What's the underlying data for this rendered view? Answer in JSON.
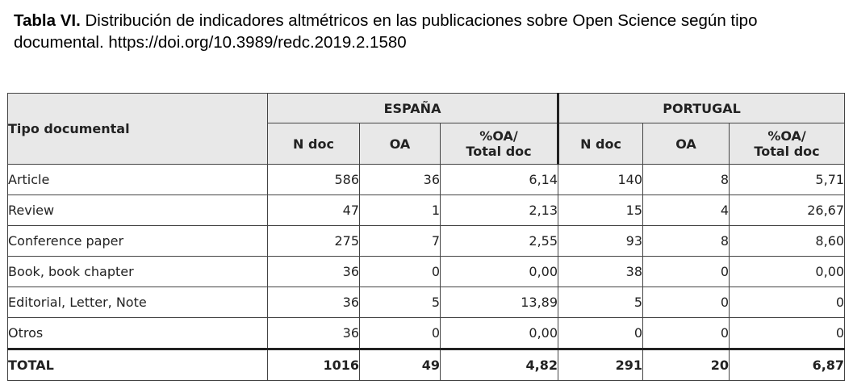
{
  "caption": {
    "label": "Tabla VI.",
    "text": " Distribución de indicadores altmétricos en las publicaciones sobre Open Science según tipo documental. https://doi.org/10.3989/redc.2019.2.1580"
  },
  "table": {
    "row_header": "Tipo documental",
    "groups": [
      "ESPAÑA",
      "PORTUGAL"
    ],
    "subheaders": {
      "n_doc": "N doc",
      "oa": "OA",
      "pct_line1": "%OA/",
      "pct_line2": "Total doc"
    },
    "rows": [
      {
        "label": "Article",
        "es": [
          "586",
          "36",
          "6,14"
        ],
        "pt": [
          "140",
          "8",
          "5,71"
        ]
      },
      {
        "label": "Review",
        "es": [
          "47",
          "1",
          "2,13"
        ],
        "pt": [
          "15",
          "4",
          "26,67"
        ]
      },
      {
        "label": "Conference paper",
        "es": [
          "275",
          "7",
          "2,55"
        ],
        "pt": [
          "93",
          "8",
          "8,60"
        ]
      },
      {
        "label": "Book, book chapter",
        "es": [
          "36",
          "0",
          "0,00"
        ],
        "pt": [
          "38",
          "0",
          "0,00"
        ]
      },
      {
        "label": "Editorial, Letter, Note",
        "es": [
          "36",
          "5",
          "13,89"
        ],
        "pt": [
          "5",
          "0",
          "0"
        ]
      },
      {
        "label": "Otros",
        "es": [
          "36",
          "0",
          "0,00"
        ],
        "pt": [
          "0",
          "0",
          "0"
        ]
      }
    ],
    "total": {
      "label": "TOTAL",
      "es": [
        "1016",
        "49",
        "4,82"
      ],
      "pt": [
        "291",
        "20",
        "6,87"
      ]
    }
  }
}
